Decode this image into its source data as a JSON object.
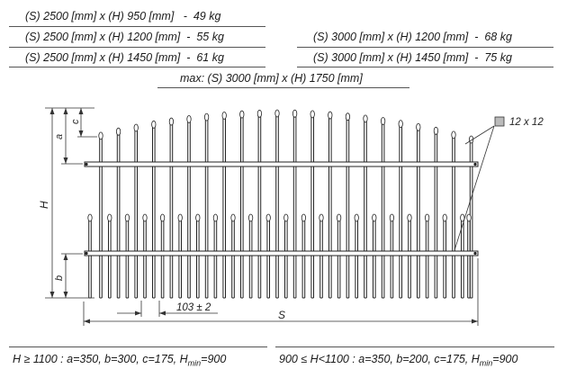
{
  "specs_left": [
    "(S) 2500 [mm] x (H) 950 [mm]   -  49 kg",
    "(S) 2500 [mm] x (H) 1200 [mm]  -  55 kg",
    "(S) 2500 [mm] x (H) 1450 [mm]  -  61 kg"
  ],
  "specs_right": [
    "(S) 3000 [mm] x (H) 1200 [mm]  -  68 kg",
    "(S) 3000 [mm] x (H) 1450 [mm]  -  75 kg"
  ],
  "spec_max": "max: (S) 3000 [mm] x (H) 1750 [mm]",
  "drawing": {
    "label_a": "a",
    "label_c": "c",
    "label_H": "H",
    "label_b": "b",
    "label_S": "S",
    "label_spacing": "103 ± 2",
    "label_profile": "12 x 12"
  },
  "footnotes": {
    "left": {
      "pre": "H ≥ 1100 : a=350, b=300, c=175, H",
      "sub": "min",
      "post": "=900"
    },
    "right": {
      "pre": "900 ≤ H<1100 : a=350, b=200, c=175, H",
      "sub": "min",
      "post": "=900"
    }
  }
}
